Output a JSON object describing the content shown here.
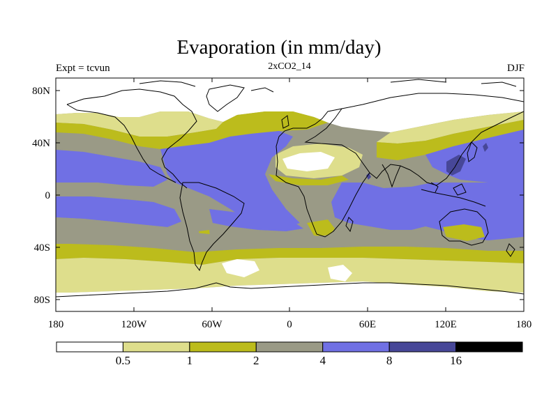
{
  "title": "Evaporation (in mm/day)",
  "left_label": "Expt = tcvun",
  "center_label": "2xCO2_14",
  "right_label": "DJF",
  "map": {
    "lat_ticks": [
      "80N",
      "40N",
      "0",
      "40S",
      "80S"
    ],
    "lon_ticks": [
      "180",
      "120W",
      "60W",
      "0",
      "60E",
      "120E",
      "180"
    ]
  },
  "colorbar": {
    "colors": [
      "#ffffff",
      "#dede8c",
      "#bcbc1c",
      "#9a9a86",
      "#7070e4",
      "#474798",
      "#000000"
    ],
    "labels": [
      "0.5",
      "1",
      "2",
      "4",
      "8",
      "16"
    ]
  }
}
